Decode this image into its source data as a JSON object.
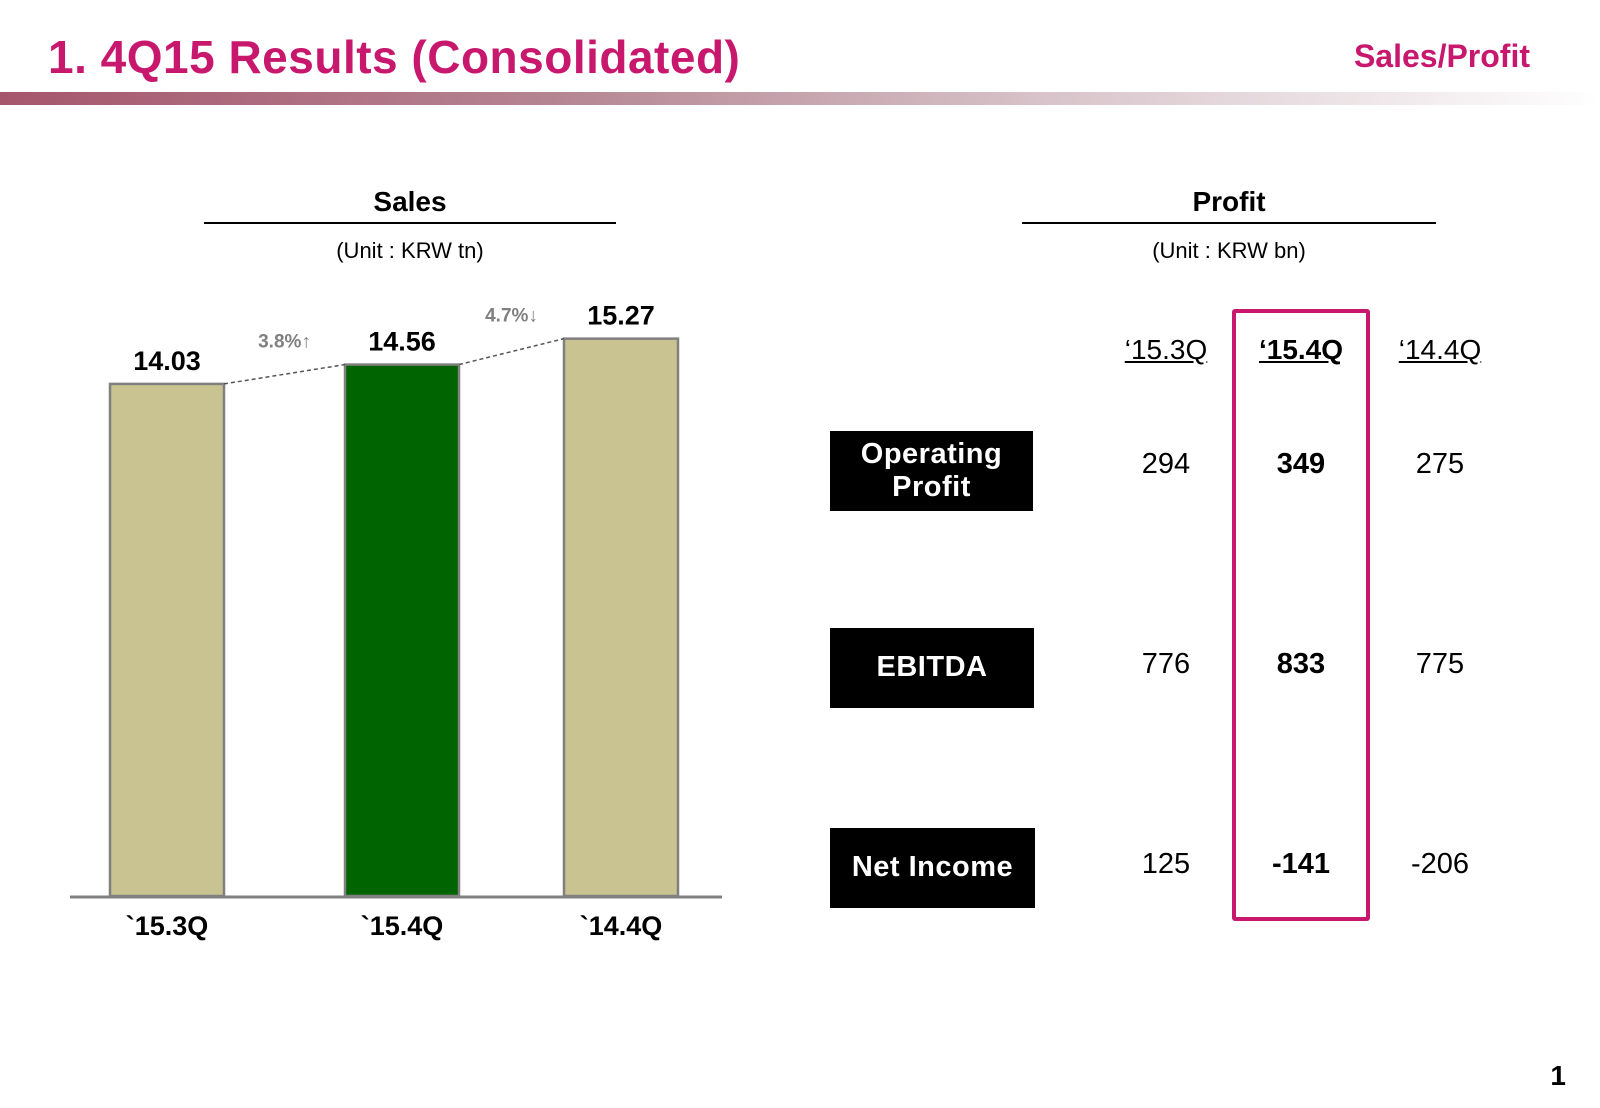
{
  "header": {
    "title": "1. 4Q15 Results (Consolidated)",
    "section": "Sales/Profit"
  },
  "sales": {
    "heading": "Sales",
    "unit": "(Unit : KRW tn)"
  },
  "profit": {
    "heading": "Profit",
    "unit": "(Unit : KRW bn)",
    "columns": [
      "‘15.3Q",
      "‘15.4Q",
      "‘14.4Q"
    ],
    "highlight_column": "‘15.4Q",
    "rows": [
      {
        "label_line1": "Operating",
        "label_line2": "Profit",
        "values": [
          "294",
          "349",
          "275"
        ]
      },
      {
        "label_line1": "EBITDA",
        "label_line2": "",
        "values": [
          "776",
          "833",
          "775"
        ]
      },
      {
        "label_line1": "Net Income",
        "label_line2": "",
        "values": [
          "125",
          "-141",
          "-206"
        ]
      }
    ]
  },
  "chart_data": {
    "type": "bar",
    "title": "Sales",
    "subtitle": "(Unit : KRW tn)",
    "categories": [
      "`15.3Q",
      "`15.4Q",
      "`14.4Q"
    ],
    "values": [
      14.03,
      14.56,
      15.27
    ],
    "value_labels": [
      "14.03",
      "14.56",
      "15.27"
    ],
    "bar_colors": [
      "#c8c391",
      "#006400",
      "#c8c391"
    ],
    "changes": [
      {
        "from": "`15.3Q",
        "to": "`15.4Q",
        "label": "3.8%↑"
      },
      {
        "from": "`15.4Q",
        "to": "`14.4Q",
        "label": "4.7%↓"
      }
    ],
    "ylim": [
      0,
      16
    ],
    "grid": false,
    "legend": "none"
  },
  "colors": {
    "accent": "#c8186e",
    "bar_neutral": "#c8c391",
    "bar_highlight": "#006400",
    "axis": "#808080"
  },
  "page_number": "1"
}
